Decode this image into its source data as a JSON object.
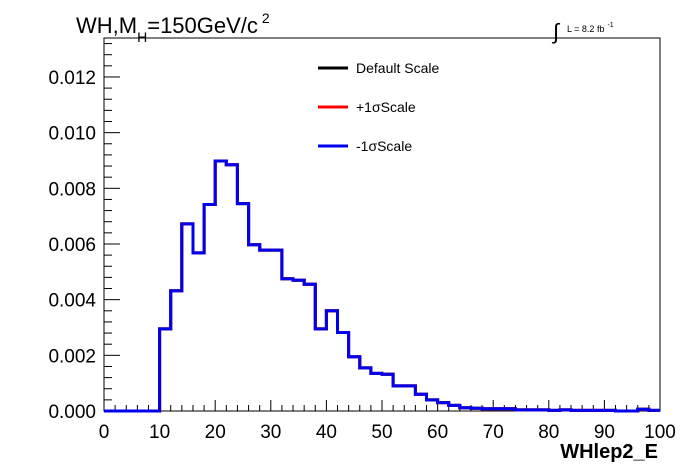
{
  "chart_data": {
    "type": "line",
    "title": "WH,M_H=150GeV/c^2",
    "title_parts": {
      "main": "WH,M",
      "sub": "H",
      "rest": "=150GeV/c",
      "sup": "2"
    },
    "lumi": {
      "integral_symbol": "∫",
      "text": "L = 8.2 fb",
      "sup": "-1"
    },
    "xlabel": "WHlep2_E",
    "ylabel": "",
    "xlim": [
      0,
      100
    ],
    "ylim": [
      0,
      0.0134
    ],
    "x_ticks": [
      "0",
      "10",
      "20",
      "30",
      "40",
      "50",
      "60",
      "70",
      "80",
      "90",
      "100"
    ],
    "y_ticks": [
      "0.000",
      "0.002",
      "0.004",
      "0.006",
      "0.008",
      "0.010",
      "0.012"
    ],
    "bin_width": 2,
    "bin_edges_start": 0,
    "legend_placement": "top-center",
    "series": [
      {
        "name": "Default Scale",
        "color": "#000000",
        "values": [
          0,
          0,
          0,
          0,
          0,
          0.00295,
          0.00432,
          0.00672,
          0.00568,
          0.00742,
          0.00898,
          0.00885,
          0.00745,
          0.00597,
          0.00578,
          0.00578,
          0.00475,
          0.0047,
          0.00455,
          0.00295,
          0.0036,
          0.00282,
          0.00195,
          0.00155,
          0.00135,
          0.00132,
          0.0009,
          0.0009,
          0.0006,
          0.0004,
          0.0003,
          0.0002,
          0.00012,
          0.0001,
          8e-05,
          8e-05,
          8e-05,
          4e-05,
          4e-05,
          4e-05,
          2e-05,
          4e-05,
          2e-05,
          2e-05,
          2e-05,
          2e-05,
          0.0,
          0.0,
          6e-05,
          2e-05
        ]
      },
      {
        "name": "+1σScale",
        "color": "#ff0000",
        "values": [
          0,
          0,
          0,
          0,
          0,
          0.00295,
          0.00432,
          0.00672,
          0.00568,
          0.00742,
          0.00898,
          0.00885,
          0.00745,
          0.00597,
          0.00578,
          0.00578,
          0.00475,
          0.0047,
          0.00455,
          0.00295,
          0.0036,
          0.00282,
          0.00195,
          0.00155,
          0.00135,
          0.00132,
          0.0009,
          0.0009,
          0.0006,
          0.0004,
          0.0003,
          0.0002,
          0.00012,
          0.0001,
          8e-05,
          8e-05,
          8e-05,
          4e-05,
          4e-05,
          4e-05,
          2e-05,
          4e-05,
          2e-05,
          2e-05,
          2e-05,
          2e-05,
          0.0,
          0.0,
          6e-05,
          2e-05
        ]
      },
      {
        "name": "-1σScale",
        "color": "#0000ee",
        "values": [
          0,
          0,
          0,
          0,
          0,
          0.00295,
          0.00432,
          0.00672,
          0.00568,
          0.00742,
          0.00898,
          0.00885,
          0.00745,
          0.00597,
          0.00578,
          0.00578,
          0.00475,
          0.0047,
          0.00455,
          0.00295,
          0.0036,
          0.00282,
          0.00195,
          0.00155,
          0.00135,
          0.00132,
          0.0009,
          0.0009,
          0.0006,
          0.0004,
          0.0003,
          0.0002,
          0.00012,
          0.0001,
          8e-05,
          8e-05,
          8e-05,
          4e-05,
          4e-05,
          4e-05,
          2e-05,
          4e-05,
          2e-05,
          2e-05,
          2e-05,
          2e-05,
          0.0,
          0.0,
          6e-05,
          2e-05
        ]
      }
    ]
  }
}
